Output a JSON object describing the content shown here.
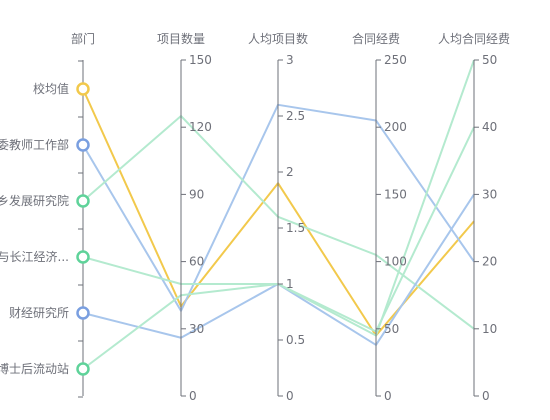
{
  "chart_data": {
    "type": "parallel",
    "axes": [
      {
        "name": "部门",
        "type": "category",
        "categories": [
          "校均值",
          "党委教师工作部",
          "城乡发展研究院",
          "长三角与长江经济带研究中心",
          "财经研究所",
          "博士后流动站"
        ],
        "category_labels": [
          "校均值",
          "委教师工作部",
          "乡发展研究院",
          "与长江经济...",
          "财经研究所",
          "博士后流动站"
        ]
      },
      {
        "name": "项目数量",
        "type": "value",
        "min": 0,
        "max": 150,
        "ticks": [
          0,
          30,
          60,
          90,
          120,
          150
        ],
        "tick_labels": [
          "0",
          "30",
          "60",
          "90",
          "120",
          "150"
        ]
      },
      {
        "name": "人均项目数",
        "type": "value",
        "min": 0,
        "max": 3,
        "ticks": [
          0,
          0.5,
          1,
          1.5,
          2,
          2.5,
          3
        ],
        "tick_labels": [
          "0",
          "0.5",
          "1",
          "1.5",
          "2",
          "2.5",
          "3"
        ]
      },
      {
        "name": "合同经费",
        "type": "value",
        "min": 0,
        "max": 250,
        "ticks": [
          0,
          50,
          100,
          150,
          200,
          250
        ],
        "tick_labels": [
          "0",
          "50",
          "100",
          "150",
          "200",
          "250"
        ]
      },
      {
        "name": "人均合同经费",
        "type": "value",
        "min": 0,
        "max": 50,
        "ticks": [
          0,
          10,
          20,
          30,
          40,
          50
        ],
        "tick_labels": [
          "0",
          "10",
          "20",
          "30",
          "40",
          "50"
        ]
      }
    ],
    "series": [
      {
        "category": "校均值",
        "color": "#f2c94c",
        "marker_color": "#f2c94c",
        "values": [
          40,
          1.9,
          45,
          26
        ]
      },
      {
        "category": "党委教师工作部",
        "color": "#a8c6ec",
        "marker_color": "#7a9fe0",
        "values": [
          38,
          2.6,
          205,
          20
        ]
      },
      {
        "category": "城乡发展研究院",
        "color": "#b4eacf",
        "marker_color": "#5fd39a",
        "values": [
          125,
          1.6,
          105,
          10
        ]
      },
      {
        "category": "长三角与长江经济带研究中心",
        "color": "#b4eacf",
        "marker_color": "#5fd39a",
        "values": [
          50,
          1,
          48,
          40
        ]
      },
      {
        "category": "财经研究所",
        "color": "#a8c6ec",
        "marker_color": "#7a9fe0",
        "values": [
          26,
          1,
          38,
          30
        ]
      },
      {
        "category": "博士后流动站",
        "color": "#b4eacf",
        "marker_color": "#5fd39a",
        "values": [
          45,
          1,
          45,
          50
        ]
      }
    ]
  }
}
